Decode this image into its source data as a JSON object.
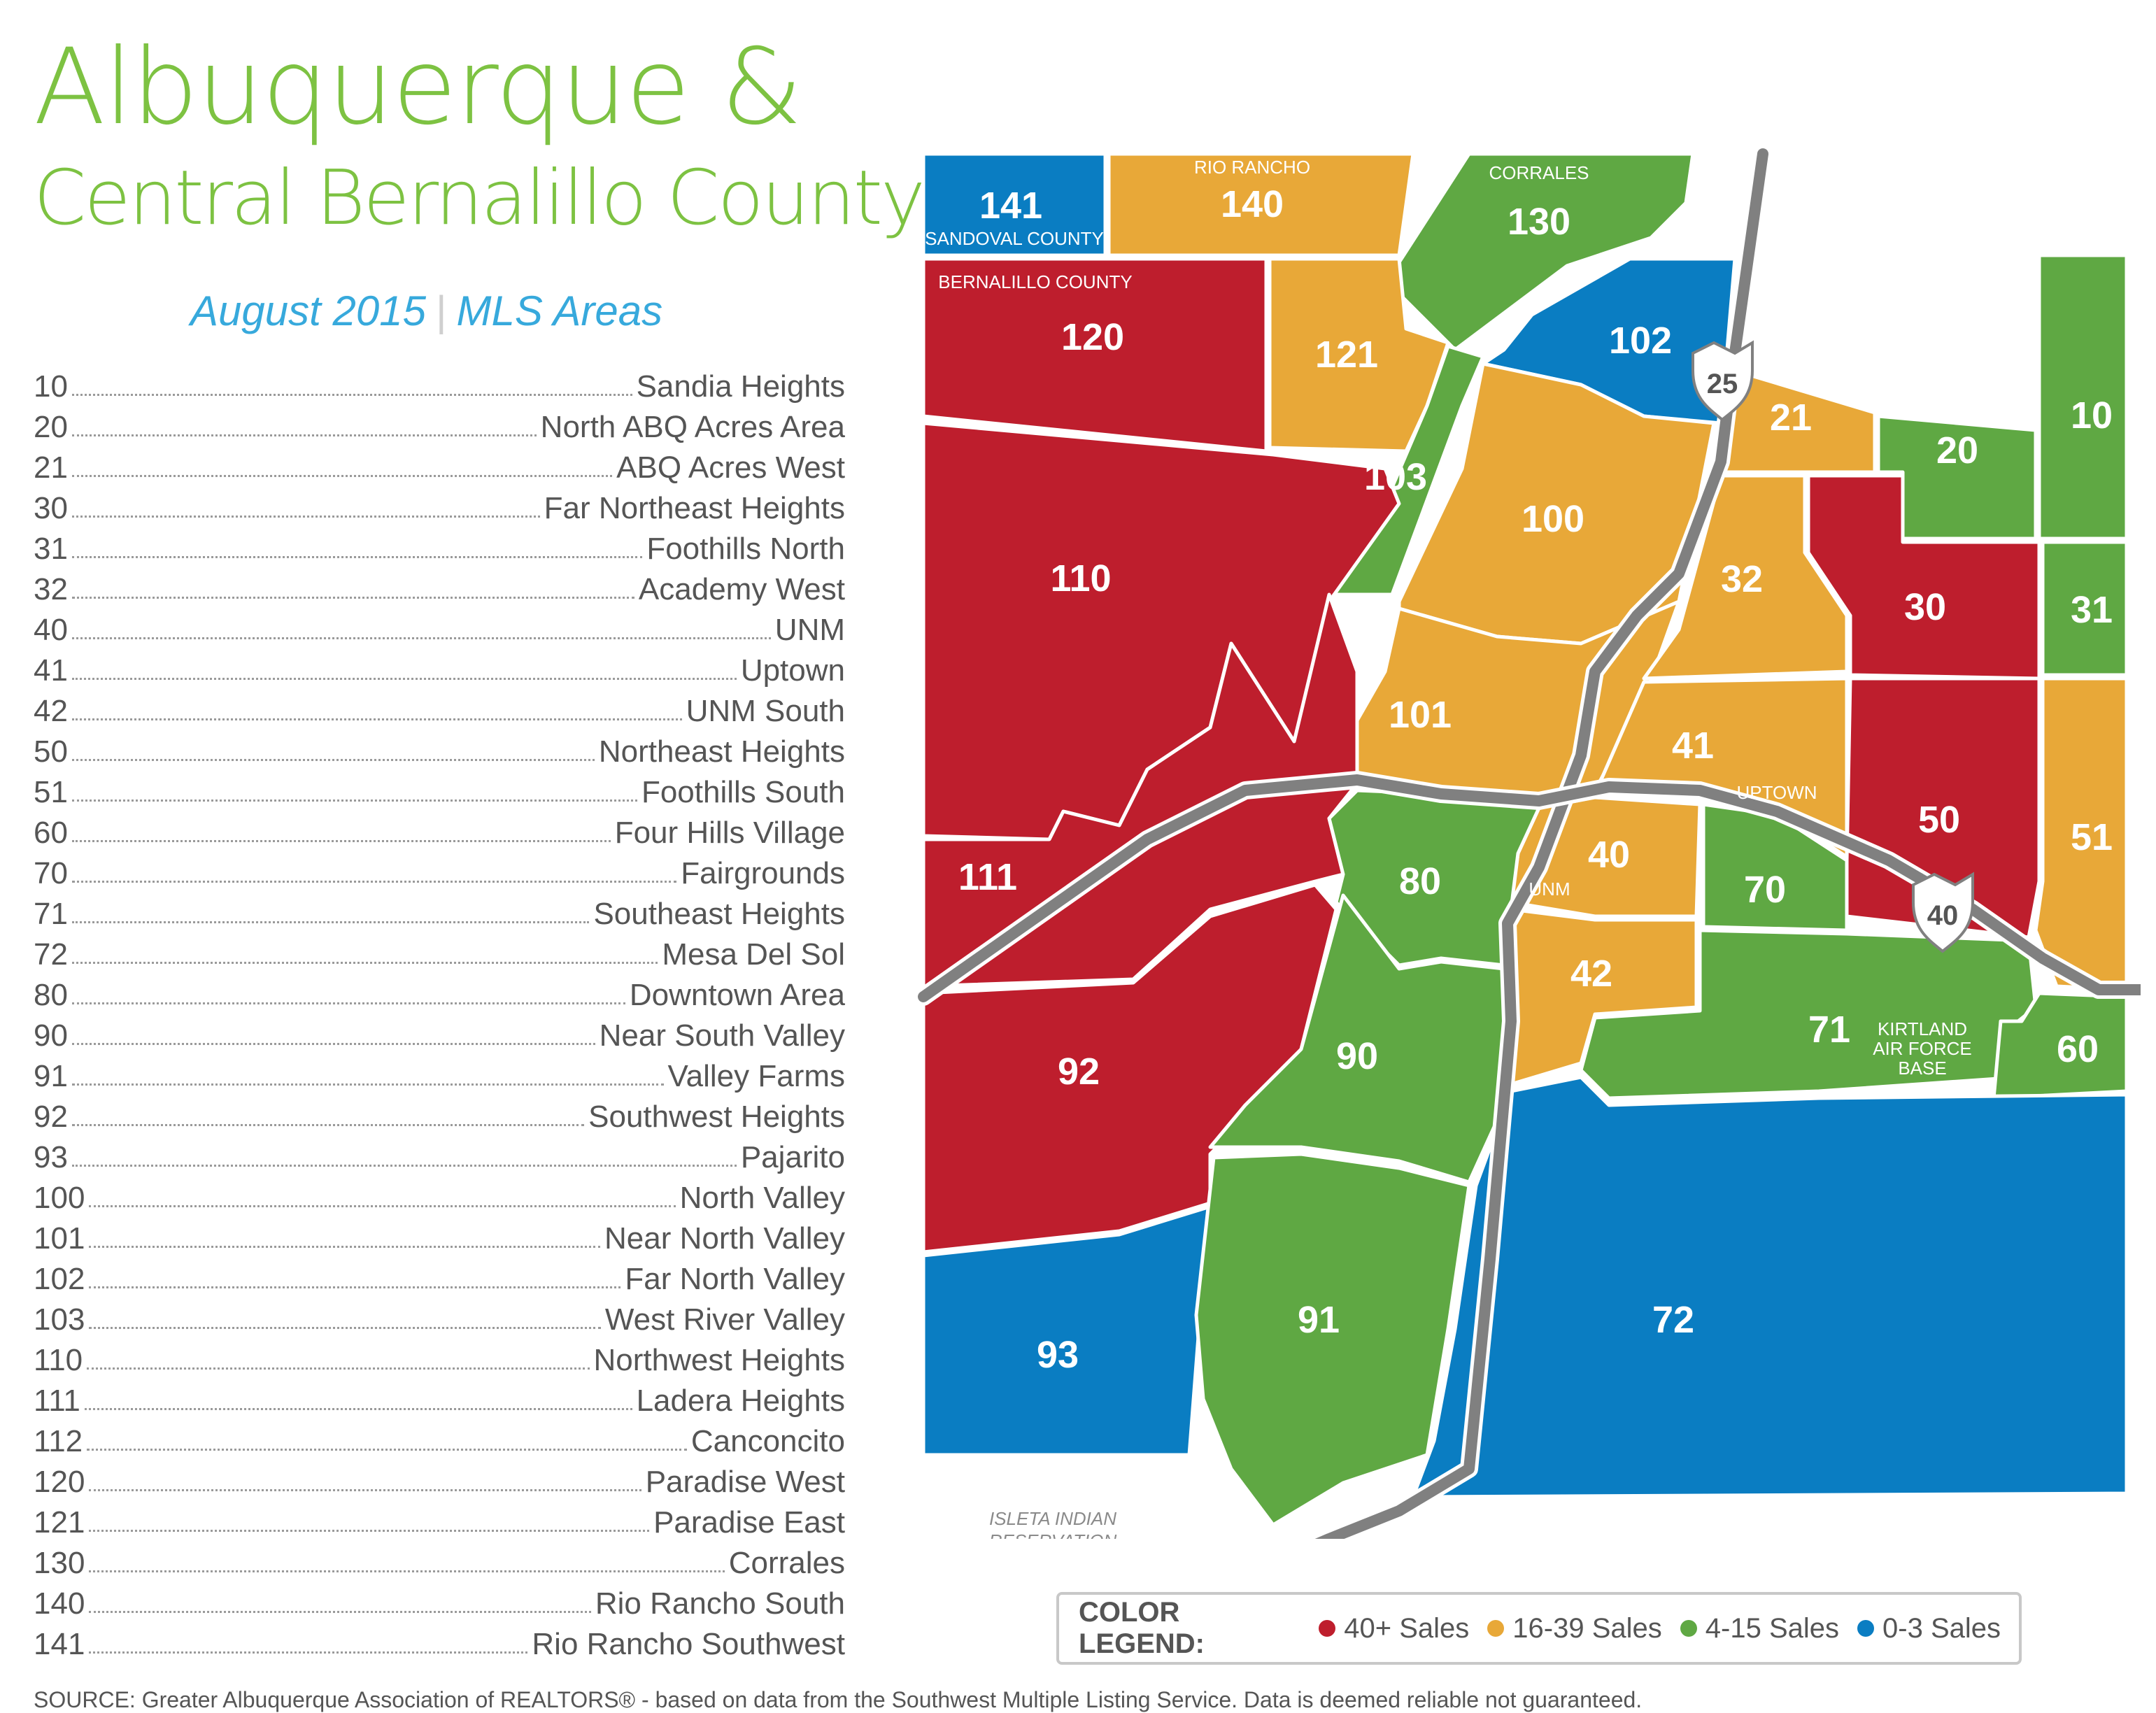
{
  "header": {
    "title_line1": "Albuquerque &",
    "title_line2": "Central Bernalillo County",
    "date": "August 2015",
    "subtitle": "MLS Areas"
  },
  "areas": [
    {
      "num": "10",
      "name": "Sandia Heights"
    },
    {
      "num": "20",
      "name": "North ABQ Acres Area"
    },
    {
      "num": "21",
      "name": "ABQ Acres West"
    },
    {
      "num": "30",
      "name": "Far Northeast Heights"
    },
    {
      "num": "31",
      "name": "Foothills North"
    },
    {
      "num": "32",
      "name": "Academy West"
    },
    {
      "num": "40",
      "name": "UNM"
    },
    {
      "num": "41",
      "name": "Uptown"
    },
    {
      "num": "42",
      "name": "UNM South"
    },
    {
      "num": "50",
      "name": "Northeast Heights"
    },
    {
      "num": "51",
      "name": "Foothills South"
    },
    {
      "num": "60",
      "name": "Four Hills Village"
    },
    {
      "num": "70",
      "name": "Fairgrounds"
    },
    {
      "num": "71",
      "name": "Southeast Heights"
    },
    {
      "num": "72",
      "name": "Mesa Del Sol"
    },
    {
      "num": "80",
      "name": "Downtown Area"
    },
    {
      "num": "90",
      "name": "Near South Valley"
    },
    {
      "num": "91",
      "name": "Valley Farms"
    },
    {
      "num": "92",
      "name": "Southwest Heights"
    },
    {
      "num": "93",
      "name": "Pajarito"
    },
    {
      "num": "100",
      "name": "North Valley"
    },
    {
      "num": "101",
      "name": "Near North Valley"
    },
    {
      "num": "102",
      "name": "Far North Valley"
    },
    {
      "num": "103",
      "name": "West River Valley"
    },
    {
      "num": "110",
      "name": "Northwest Heights"
    },
    {
      "num": "111",
      "name": "Ladera Heights"
    },
    {
      "num": "112",
      "name": "Canconcito"
    },
    {
      "num": "120",
      "name": "Paradise West"
    },
    {
      "num": "121",
      "name": "Paradise East"
    },
    {
      "num": "130",
      "name": "Corrales"
    },
    {
      "num": "140",
      "name": "Rio Rancho South"
    },
    {
      "num": "141",
      "name": "Rio Rancho Southwest"
    }
  ],
  "map": {
    "region_labels": {
      "141": "141",
      "140": "140",
      "130": "130",
      "120": "120",
      "121": "121",
      "102": "102",
      "103": "103",
      "100": "100",
      "110": "110",
      "101": "101",
      "111": "111",
      "21": "21",
      "20": "20",
      "10": "10",
      "32": "32",
      "30": "30",
      "31": "31",
      "41": "41",
      "50": "50",
      "51": "51",
      "40": "40",
      "80": "80",
      "70": "70",
      "42": "42",
      "92": "92",
      "90": "90",
      "71": "71",
      "60": "60",
      "93": "93",
      "91": "91",
      "72": "72"
    },
    "place_labels": {
      "sandoval": "SANDOVAL COUNTY",
      "rio_rancho": "RIO RANCHO",
      "corrales": "CORRALES",
      "bernalillo": "BERNALILLO COUNTY",
      "uptown": "UPTOWN",
      "unm": "UNM",
      "kirtland_1": "KIRTLAND",
      "kirtland_2": "AIR FORCE",
      "kirtland_3": "BASE",
      "isleta_1": "ISLETA INDIAN",
      "isleta_2": "RESERVATION"
    },
    "shields": {
      "i25": "25",
      "i40": "40"
    }
  },
  "legend": {
    "title": "COLOR LEGEND:",
    "items": [
      {
        "label": "40+ Sales",
        "color": "#be1e2d"
      },
      {
        "label": "16-39 Sales",
        "color": "#e8a838"
      },
      {
        "label": "4-15 Sales",
        "color": "#5fa843"
      },
      {
        "label": "0-3 Sales",
        "color": "#0a7dc2"
      }
    ]
  },
  "colors": {
    "red": "#be1e2d",
    "orange": "#e8a838",
    "green": "#5fa843",
    "blue": "#0a7dc2",
    "title_green": "#7dc242",
    "subtitle_blue": "#37a9dc",
    "road": "#808080"
  },
  "source": "SOURCE: Greater Albuquerque Association of REALTORS® - based on data from the Southwest Multiple Listing Service. Data is deemed reliable not guaranteed."
}
